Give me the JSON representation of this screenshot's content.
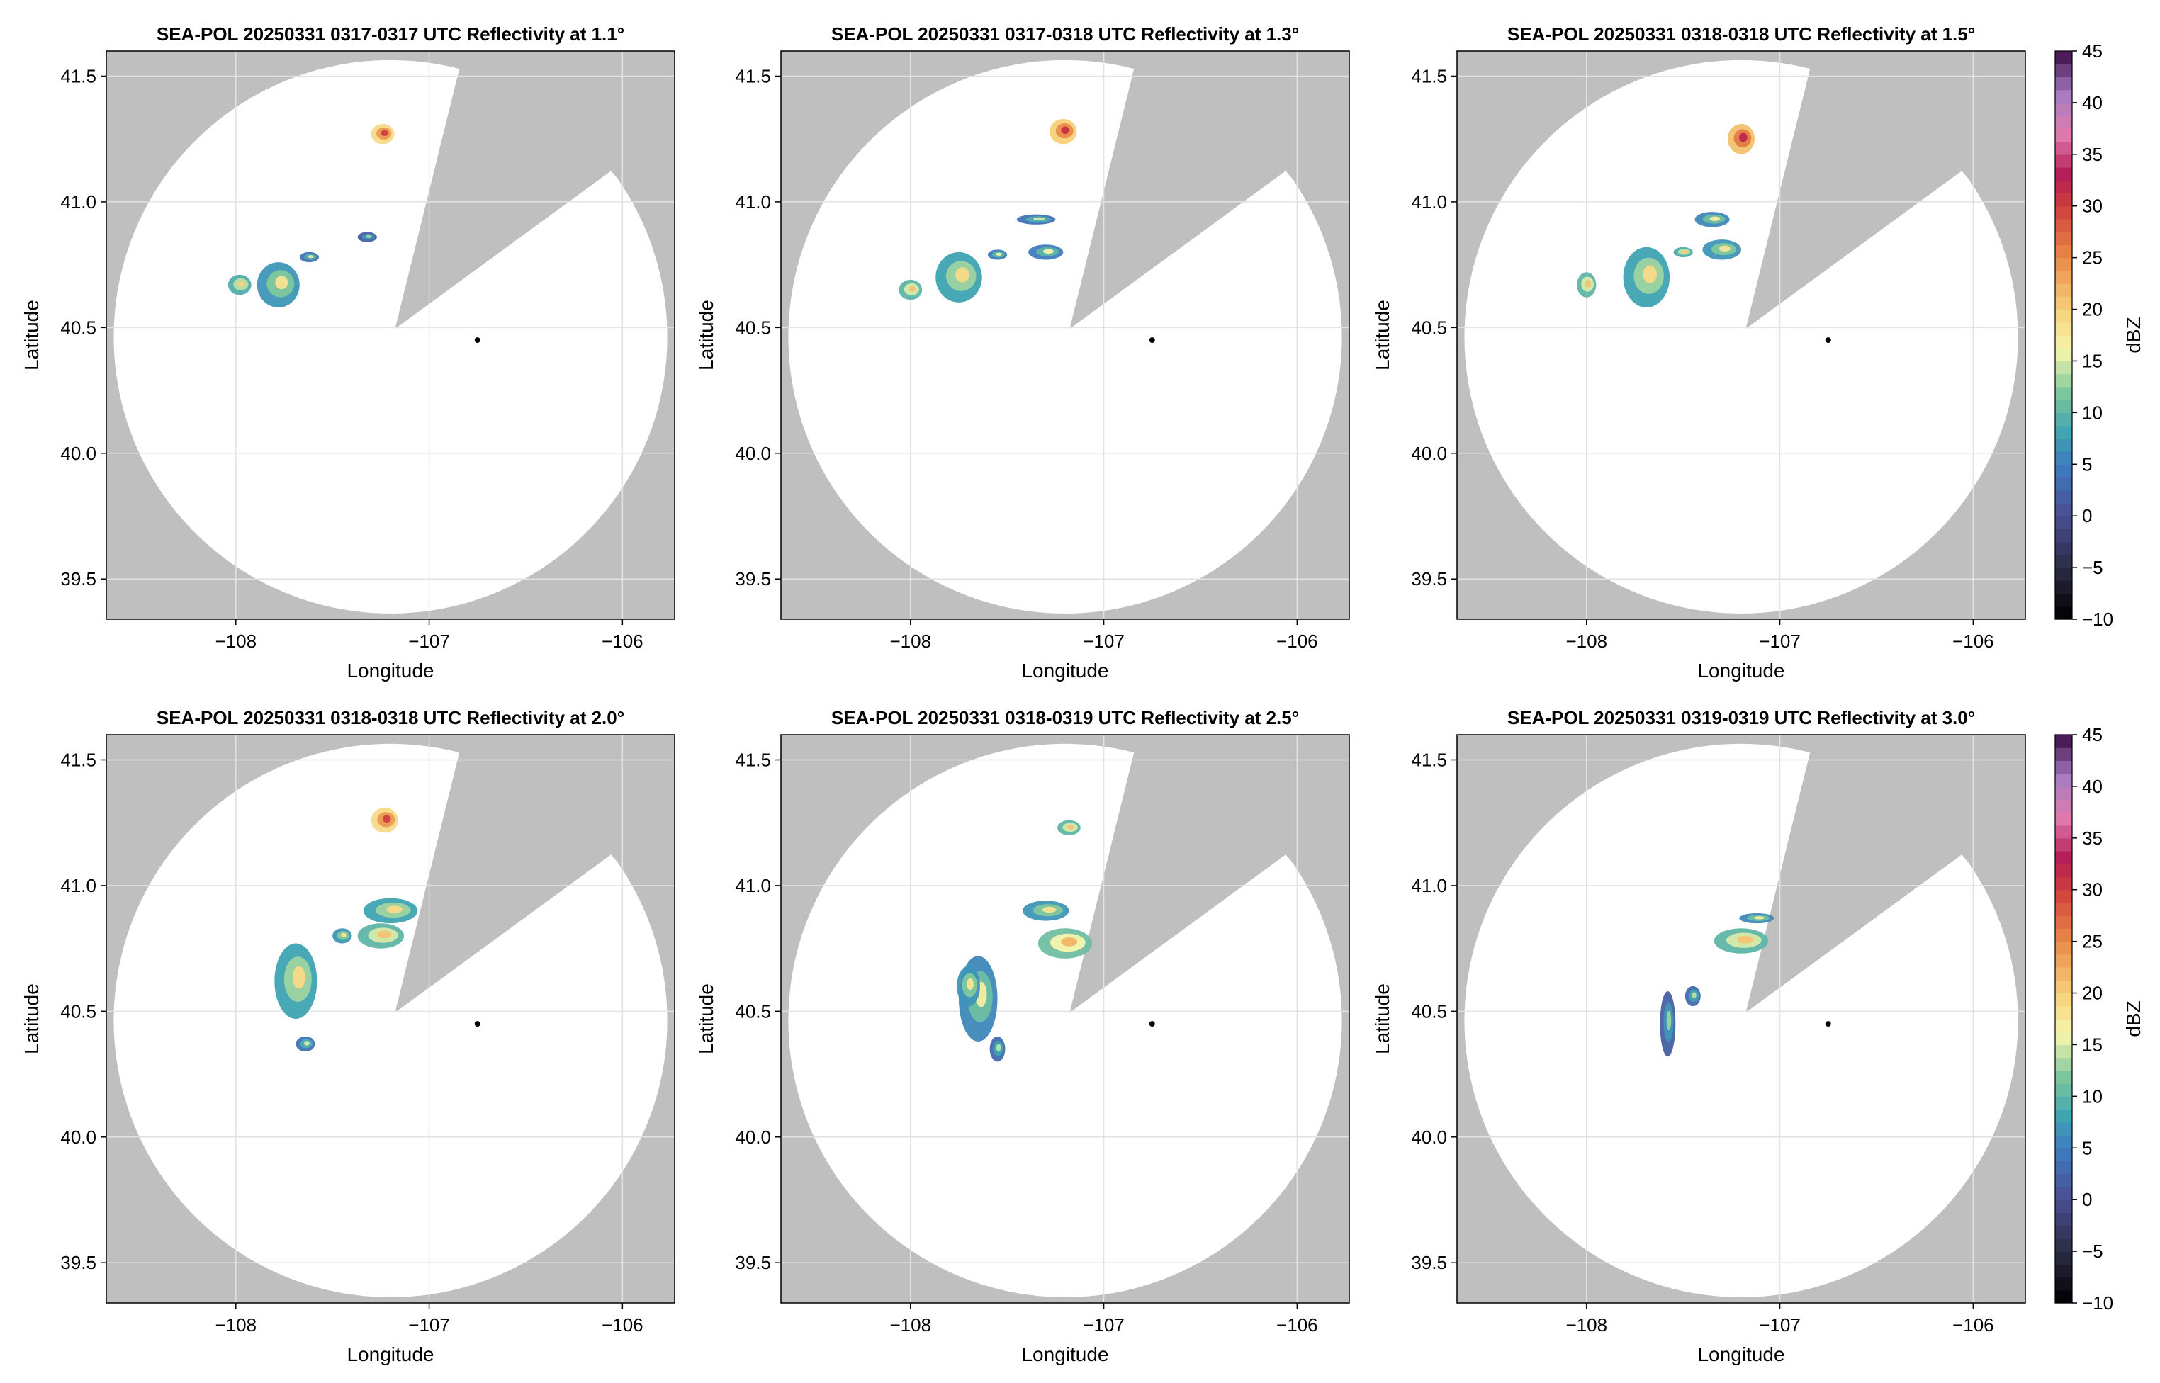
{
  "chart_data": [
    {
      "type": "heatmap",
      "title": "SEA-POL 20250331 0317-0317 UTC Reflectivity at 1.1°",
      "xlabel": "Longitude",
      "ylabel": "Latitude",
      "xlim": [
        -108.67,
        -105.73
      ],
      "ylim": [
        39.34,
        41.6
      ],
      "xticks": [
        -108,
        -107,
        -106
      ],
      "yticks": [
        39.5,
        40.0,
        40.5,
        41.0,
        41.5
      ],
      "grid": true,
      "radar_site": [
        -106.75,
        40.45
      ],
      "cells": [
        {
          "lon": -107.24,
          "lat": 41.27,
          "rx": 0.06,
          "ry": 0.04,
          "dbz": 24
        },
        {
          "lon": -107.78,
          "lat": 40.67,
          "rx": 0.11,
          "ry": 0.09,
          "dbz": 12
        },
        {
          "lon": -107.98,
          "lat": 40.67,
          "rx": 0.06,
          "ry": 0.04,
          "dbz": 14
        },
        {
          "lon": -107.62,
          "lat": 40.78,
          "rx": 0.05,
          "ry": 0.02,
          "dbz": 9
        },
        {
          "lon": -107.32,
          "lat": 40.86,
          "rx": 0.05,
          "ry": 0.02,
          "dbz": 7
        }
      ]
    },
    {
      "type": "heatmap",
      "title": "SEA-POL 20250331 0317-0318 UTC Reflectivity at 1.3°",
      "xlabel": "Longitude",
      "ylabel": "Latitude",
      "xlim": [
        -108.67,
        -105.73
      ],
      "ylim": [
        39.34,
        41.6
      ],
      "xticks": [
        -108,
        -107,
        -106
      ],
      "yticks": [
        39.5,
        40.0,
        40.5,
        41.0,
        41.5
      ],
      "grid": true,
      "radar_site": [
        -106.75,
        40.45
      ],
      "cells": [
        {
          "lon": -107.21,
          "lat": 41.28,
          "rx": 0.07,
          "ry": 0.05,
          "dbz": 25
        },
        {
          "lon": -107.75,
          "lat": 40.7,
          "rx": 0.12,
          "ry": 0.1,
          "dbz": 13
        },
        {
          "lon": -108.0,
          "lat": 40.65,
          "rx": 0.06,
          "ry": 0.04,
          "dbz": 15
        },
        {
          "lon": -107.3,
          "lat": 40.8,
          "rx": 0.09,
          "ry": 0.03,
          "dbz": 10
        },
        {
          "lon": -107.35,
          "lat": 40.93,
          "rx": 0.1,
          "ry": 0.02,
          "dbz": 9
        },
        {
          "lon": -107.55,
          "lat": 40.79,
          "rx": 0.05,
          "ry": 0.02,
          "dbz": 10
        }
      ]
    },
    {
      "type": "heatmap",
      "title": "SEA-POL 20250331 0318-0318 UTC Reflectivity at 1.5°",
      "xlabel": "Longitude",
      "ylabel": "Latitude",
      "xlim": [
        -108.67,
        -105.73
      ],
      "ylim": [
        39.34,
        41.6
      ],
      "xticks": [
        -108,
        -107,
        -106
      ],
      "yticks": [
        39.5,
        40.0,
        40.5,
        41.0,
        41.5
      ],
      "grid": true,
      "radar_site": [
        -106.75,
        40.45
      ],
      "cells": [
        {
          "lon": -107.2,
          "lat": 41.25,
          "rx": 0.07,
          "ry": 0.06,
          "dbz": 26
        },
        {
          "lon": -107.69,
          "lat": 40.7,
          "rx": 0.12,
          "ry": 0.12,
          "dbz": 13
        },
        {
          "lon": -108.0,
          "lat": 40.67,
          "rx": 0.05,
          "ry": 0.05,
          "dbz": 15
        },
        {
          "lon": -107.3,
          "lat": 40.81,
          "rx": 0.1,
          "ry": 0.04,
          "dbz": 12
        },
        {
          "lon": -107.35,
          "lat": 40.93,
          "rx": 0.09,
          "ry": 0.03,
          "dbz": 11
        },
        {
          "lon": -107.5,
          "lat": 40.8,
          "rx": 0.05,
          "ry": 0.02,
          "dbz": 14
        }
      ]
    },
    {
      "type": "heatmap",
      "title": "SEA-POL 20250331 0318-0318 UTC Reflectivity at 2.0°",
      "xlabel": "Longitude",
      "ylabel": "Latitude",
      "xlim": [
        -108.67,
        -105.73
      ],
      "ylim": [
        39.34,
        41.6
      ],
      "xticks": [
        -108,
        -107,
        -106
      ],
      "yticks": [
        39.5,
        40.0,
        40.5,
        41.0,
        41.5
      ],
      "grid": true,
      "radar_site": [
        -106.75,
        40.45
      ],
      "cells": [
        {
          "lon": -107.23,
          "lat": 41.26,
          "rx": 0.07,
          "ry": 0.05,
          "dbz": 24
        },
        {
          "lon": -107.69,
          "lat": 40.62,
          "rx": 0.11,
          "ry": 0.15,
          "dbz": 13
        },
        {
          "lon": -107.64,
          "lat": 40.37,
          "rx": 0.05,
          "ry": 0.03,
          "dbz": 9
        },
        {
          "lon": -107.2,
          "lat": 40.9,
          "rx": 0.14,
          "ry": 0.05,
          "dbz": 13
        },
        {
          "lon": -107.25,
          "lat": 40.8,
          "rx": 0.12,
          "ry": 0.05,
          "dbz": 15
        },
        {
          "lon": -107.45,
          "lat": 40.8,
          "rx": 0.05,
          "ry": 0.03,
          "dbz": 12
        }
      ]
    },
    {
      "type": "heatmap",
      "title": "SEA-POL 20250331 0318-0319 UTC Reflectivity at 2.5°",
      "xlabel": "Longitude",
      "ylabel": "Latitude",
      "xlim": [
        -108.67,
        -105.73
      ],
      "ylim": [
        39.34,
        41.6
      ],
      "xticks": [
        -108,
        -107,
        -106
      ],
      "yticks": [
        39.5,
        40.0,
        40.5,
        41.0,
        41.5
      ],
      "grid": true,
      "radar_site": [
        -106.75,
        40.45
      ],
      "cells": [
        {
          "lon": -107.18,
          "lat": 41.23,
          "rx": 0.06,
          "ry": 0.03,
          "dbz": 15
        },
        {
          "lon": -107.65,
          "lat": 40.55,
          "rx": 0.1,
          "ry": 0.17,
          "dbz": 11
        },
        {
          "lon": -107.55,
          "lat": 40.35,
          "rx": 0.04,
          "ry": 0.05,
          "dbz": 8
        },
        {
          "lon": -107.2,
          "lat": 40.77,
          "rx": 0.14,
          "ry": 0.06,
          "dbz": 16
        },
        {
          "lon": -107.3,
          "lat": 40.9,
          "rx": 0.12,
          "ry": 0.04,
          "dbz": 12
        },
        {
          "lon": -107.7,
          "lat": 40.6,
          "rx": 0.06,
          "ry": 0.08,
          "dbz": 12
        }
      ]
    },
    {
      "type": "heatmap",
      "title": "SEA-POL 20250331 0319-0319 UTC Reflectivity at 3.0°",
      "xlabel": "Longitude",
      "ylabel": "Latitude",
      "xlim": [
        -108.67,
        -105.73
      ],
      "ylim": [
        39.34,
        41.6
      ],
      "xticks": [
        -108,
        -107,
        -106
      ],
      "yticks": [
        39.5,
        40.0,
        40.5,
        41.0,
        41.5
      ],
      "grid": true,
      "radar_site": [
        -106.75,
        40.45
      ],
      "cells": [
        {
          "lon": -107.2,
          "lat": 40.78,
          "rx": 0.14,
          "ry": 0.05,
          "dbz": 15
        },
        {
          "lon": -107.12,
          "lat": 40.87,
          "rx": 0.09,
          "ry": 0.02,
          "dbz": 11
        },
        {
          "lon": -107.58,
          "lat": 40.45,
          "rx": 0.04,
          "ry": 0.13,
          "dbz": 7
        },
        {
          "lon": -107.45,
          "lat": 40.56,
          "rx": 0.04,
          "ry": 0.04,
          "dbz": 8
        }
      ]
    }
  ],
  "colorbar": {
    "label": "dBZ",
    "min": -10,
    "max": 45,
    "ticks": [
      -10,
      -5,
      0,
      5,
      10,
      15,
      20,
      25,
      30,
      35,
      40,
      45
    ],
    "stops": [
      {
        "v": -10,
        "c": "#000000"
      },
      {
        "v": -5,
        "c": "#2b2b44"
      },
      {
        "v": 0,
        "c": "#4a4e92"
      },
      {
        "v": 5,
        "c": "#3f7cc0"
      },
      {
        "v": 8,
        "c": "#3fa3b2"
      },
      {
        "v": 12,
        "c": "#7fc79c"
      },
      {
        "v": 16,
        "c": "#f6f6ae"
      },
      {
        "v": 20,
        "c": "#f7d07a"
      },
      {
        "v": 25,
        "c": "#e88a48"
      },
      {
        "v": 30,
        "c": "#d03e3e"
      },
      {
        "v": 33,
        "c": "#b41b55"
      },
      {
        "v": 37,
        "c": "#e07bb0"
      },
      {
        "v": 41,
        "c": "#a47bbf"
      },
      {
        "v": 45,
        "c": "#3a0a45"
      }
    ]
  },
  "colors": {
    "blocked": "#bfbfbf",
    "coverage": "#ffffff",
    "grid": "#e2e2e2"
  }
}
